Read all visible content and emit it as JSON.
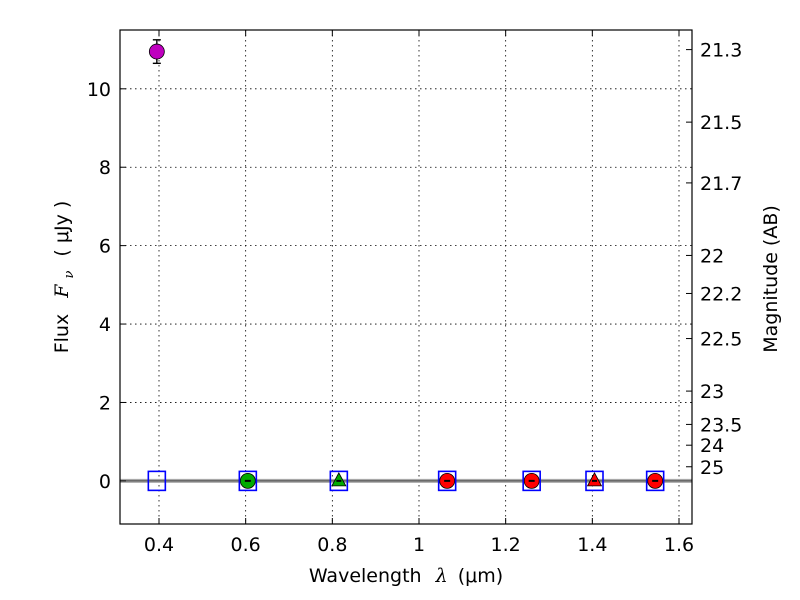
{
  "chart_data": {
    "type": "scatter",
    "title": "",
    "xlabel_main": "Wavelength",
    "xlabel_symbol": "λ",
    "xlabel_unit": "(μm)",
    "ylabel_main": "Flux",
    "ylabel_symbol": "F",
    "ylabel_subscript": "ν",
    "ylabel_unit": "( μJy )",
    "y2label": "Magnitude (AB)",
    "xlim": [
      0.31,
      1.63
    ],
    "ylim": [
      -1.1,
      11.5
    ],
    "grid": true,
    "xticks": [
      {
        "value": 0.4,
        "label": "0.4"
      },
      {
        "value": 0.6,
        "label": "0.6"
      },
      {
        "value": 0.8,
        "label": "0.8"
      },
      {
        "value": 1.0,
        "label": "1"
      },
      {
        "value": 1.2,
        "label": "1.2"
      },
      {
        "value": 1.4,
        "label": "1.4"
      },
      {
        "value": 1.6,
        "label": "1.6"
      }
    ],
    "yticks": [
      {
        "value": 0,
        "label": "0"
      },
      {
        "value": 2,
        "label": "2"
      },
      {
        "value": 4,
        "label": "4"
      },
      {
        "value": 6,
        "label": "6"
      },
      {
        "value": 8,
        "label": "8"
      },
      {
        "value": 10,
        "label": "10"
      }
    ],
    "y2ticks": [
      {
        "flux": 11.0,
        "label": "21.3"
      },
      {
        "flux": 9.15,
        "label": "21.5"
      },
      {
        "flux": 7.6,
        "label": "21.7"
      },
      {
        "flux": 5.75,
        "label": "22"
      },
      {
        "flux": 4.78,
        "label": "22.2"
      },
      {
        "flux": 3.63,
        "label": "22.5"
      },
      {
        "flux": 2.29,
        "label": "23"
      },
      {
        "flux": 1.44,
        "label": "23.5"
      },
      {
        "flux": 0.91,
        "label": "24"
      },
      {
        "flux": 0.36,
        "label": "25"
      }
    ],
    "zero_line": 0,
    "series": [
      {
        "name": "violet-detection",
        "marker": "circle",
        "color": "#bf00bf",
        "points": [
          {
            "x": 0.395,
            "y": 10.95,
            "err": 0.3
          }
        ]
      },
      {
        "name": "green-circle",
        "marker": "circle",
        "color": "#00aa00",
        "points": [
          {
            "x": 0.605,
            "y": 0.0,
            "err": 0.05
          }
        ]
      },
      {
        "name": "green-triangle",
        "marker": "triangle",
        "color": "#00aa00",
        "points": [
          {
            "x": 0.815,
            "y": 0.0,
            "err": 0.05
          }
        ]
      },
      {
        "name": "red-circles",
        "marker": "circle",
        "color": "#ff0000",
        "points": [
          {
            "x": 1.065,
            "y": 0.0,
            "err": 0.05
          },
          {
            "x": 1.26,
            "y": 0.0,
            "err": 0.05
          },
          {
            "x": 1.545,
            "y": 0.0,
            "err": 0.05
          }
        ]
      },
      {
        "name": "red-triangle",
        "marker": "triangle",
        "color": "#ff0000",
        "points": [
          {
            "x": 1.405,
            "y": 0.0,
            "err": 0.05
          }
        ]
      },
      {
        "name": "blue-squares",
        "marker": "square-open",
        "color": "#0000ff",
        "points": [
          {
            "x": 0.395,
            "y": 0.0
          },
          {
            "x": 0.605,
            "y": 0.0
          },
          {
            "x": 0.815,
            "y": 0.0
          },
          {
            "x": 1.065,
            "y": 0.0
          },
          {
            "x": 1.26,
            "y": 0.0
          },
          {
            "x": 1.405,
            "y": 0.0
          },
          {
            "x": 1.545,
            "y": 0.0
          }
        ]
      }
    ]
  }
}
